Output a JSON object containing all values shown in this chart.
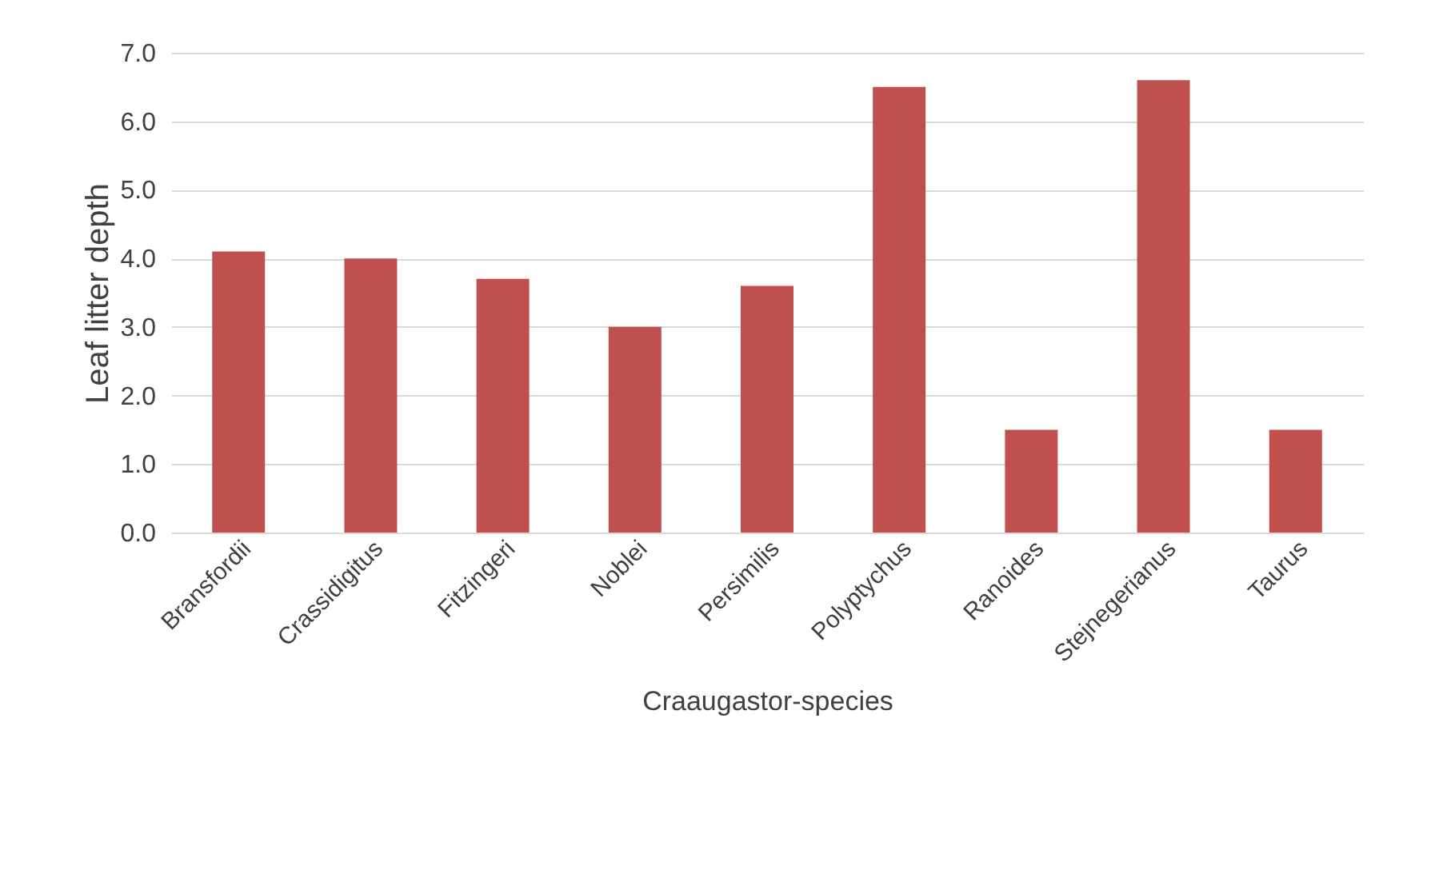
{
  "chart_data": {
    "type": "bar",
    "xlabel": "Craaugastor-species",
    "ylabel": "Leaf litter depth",
    "categories": [
      "Bransfordii",
      "Crassidigitus",
      "Fitzingeri",
      "Noblei",
      "Persimilis",
      "Polyptychus",
      "Ranoides",
      "Stejnegerianus",
      "Taurus"
    ],
    "values": [
      4.1,
      4.0,
      3.7,
      3.0,
      3.6,
      6.5,
      1.5,
      6.6,
      1.5
    ],
    "color": "#c0504d",
    "ylim": [
      0,
      7
    ],
    "yticks": [
      {
        "value": 0,
        "label": "0.0"
      },
      {
        "value": 1,
        "label": "1.0"
      },
      {
        "value": 2,
        "label": "2.0"
      },
      {
        "value": 3,
        "label": "3.0"
      },
      {
        "value": 4,
        "label": "4.0"
      },
      {
        "value": 5,
        "label": "5.0"
      },
      {
        "value": 6,
        "label": "6.0"
      },
      {
        "value": 7,
        "label": "7.0"
      }
    ],
    "grid": "y"
  }
}
